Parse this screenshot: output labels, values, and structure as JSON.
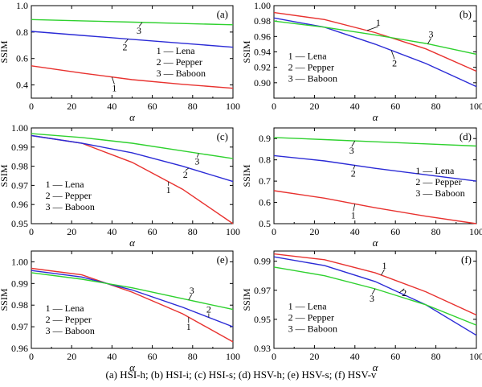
{
  "caption": "(a) HSI-h; (b) HSI-i; (c) HSI-s; (d) HSV-h; (e) HSV-s; (f) HSV-v",
  "colors": {
    "Lena": "#e8322f",
    "Pepper": "#2b2bd6",
    "Baboon": "#2fd12f"
  },
  "legend": [
    "1 — Lena",
    "2 — Pepper",
    "3 — Baboon"
  ],
  "chart_data": [
    {
      "type": "line",
      "panel": "(a)",
      "xlabel": "α",
      "ylabel": "SSIM",
      "xlim": [
        0,
        100
      ],
      "ylim": [
        0.3,
        1.0
      ],
      "xticks": [
        "0",
        "20",
        "40",
        "60",
        "80",
        "100"
      ],
      "yticks": [
        "0.4",
        "0.6",
        "0.8",
        "1.0"
      ],
      "x": [
        0,
        25,
        50,
        75,
        100
      ],
      "series": [
        {
          "name": "Lena",
          "number": "1",
          "values": [
            0.545,
            0.49,
            0.44,
            0.405,
            0.375
          ]
        },
        {
          "name": "Pepper",
          "number": "2",
          "values": [
            0.805,
            0.775,
            0.745,
            0.715,
            0.685
          ]
        },
        {
          "name": "Baboon",
          "number": "3",
          "values": [
            0.895,
            0.885,
            0.875,
            0.865,
            0.855
          ]
        }
      ]
    },
    {
      "type": "line",
      "panel": "(b)",
      "xlabel": "α",
      "ylabel": "SSIM",
      "xlim": [
        0,
        100
      ],
      "ylim": [
        0.88,
        1.0
      ],
      "xticks": [
        "0",
        "20",
        "40",
        "60",
        "80",
        "100"
      ],
      "yticks": [
        "0.90",
        "0.92",
        "0.94",
        "0.96",
        "0.98",
        "1.00"
      ],
      "x": [
        0,
        25,
        50,
        75,
        100
      ],
      "series": [
        {
          "name": "Lena",
          "number": "1",
          "values": [
            0.991,
            0.982,
            0.965,
            0.944,
            0.915
          ]
        },
        {
          "name": "Pepper",
          "number": "2",
          "values": [
            0.984,
            0.972,
            0.95,
            0.925,
            0.895
          ]
        },
        {
          "name": "Baboon",
          "number": "3",
          "values": [
            0.98,
            0.972,
            0.962,
            0.951,
            0.937
          ]
        }
      ]
    },
    {
      "type": "line",
      "panel": "(c)",
      "xlabel": "α",
      "ylabel": "SSIM",
      "xlim": [
        0,
        100
      ],
      "ylim": [
        0.95,
        1.0
      ],
      "xticks": [
        "0",
        "20",
        "40",
        "60",
        "80",
        "100"
      ],
      "yticks": [
        "0.95",
        "0.96",
        "0.97",
        "0.98",
        "0.99",
        "1.00"
      ],
      "x": [
        0,
        25,
        50,
        75,
        100
      ],
      "series": [
        {
          "name": "Lena",
          "number": "1",
          "values": [
            0.996,
            0.992,
            0.982,
            0.968,
            0.95
          ]
        },
        {
          "name": "Pepper",
          "number": "2",
          "values": [
            0.996,
            0.992,
            0.987,
            0.98,
            0.972
          ]
        },
        {
          "name": "Baboon",
          "number": "3",
          "values": [
            0.997,
            0.995,
            0.992,
            0.988,
            0.984
          ]
        }
      ]
    },
    {
      "type": "line",
      "panel": "(d)",
      "xlabel": "α",
      "ylabel": "SSIM",
      "xlim": [
        0,
        100
      ],
      "ylim": [
        0.5,
        0.95
      ],
      "xticks": [
        "0",
        "20",
        "40",
        "60",
        "80",
        "100"
      ],
      "yticks": [
        "0.5",
        "0.6",
        "0.7",
        "0.8",
        "0.9"
      ],
      "x": [
        0,
        25,
        50,
        75,
        100
      ],
      "series": [
        {
          "name": "Lena",
          "number": "1",
          "values": [
            0.655,
            0.62,
            0.575,
            0.535,
            0.5
          ]
        },
        {
          "name": "Pepper",
          "number": "2",
          "values": [
            0.82,
            0.795,
            0.76,
            0.73,
            0.7
          ]
        },
        {
          "name": "Baboon",
          "number": "3",
          "values": [
            0.905,
            0.895,
            0.885,
            0.875,
            0.865
          ]
        }
      ]
    },
    {
      "type": "line",
      "panel": "(e)",
      "xlabel": "α",
      "ylabel": "SSIM",
      "xlim": [
        0,
        100
      ],
      "ylim": [
        0.96,
        1.005
      ],
      "xticks": [
        "0",
        "20",
        "40",
        "60",
        "80",
        "100"
      ],
      "yticks": [
        "0.96",
        "0.97",
        "0.98",
        "0.99",
        "1.00"
      ],
      "x": [
        0,
        25,
        50,
        75,
        100
      ],
      "series": [
        {
          "name": "Lena",
          "number": "1",
          "values": [
            0.997,
            0.994,
            0.986,
            0.976,
            0.963
          ]
        },
        {
          "name": "Pepper",
          "number": "2",
          "values": [
            0.996,
            0.993,
            0.987,
            0.979,
            0.97
          ]
        },
        {
          "name": "Baboon",
          "number": "3",
          "values": [
            0.995,
            0.992,
            0.988,
            0.983,
            0.978
          ]
        }
      ]
    },
    {
      "type": "line",
      "panel": "(f)",
      "xlabel": "α",
      "ylabel": "SSIM",
      "xlim": [
        0,
        100
      ],
      "ylim": [
        0.93,
        0.997
      ],
      "xticks": [
        "0",
        "20",
        "40",
        "60",
        "80",
        "100"
      ],
      "yticks": [
        "0.93",
        "0.95",
        "0.97",
        "0.99"
      ],
      "x": [
        0,
        25,
        50,
        75,
        100
      ],
      "series": [
        {
          "name": "Lena",
          "number": "1",
          "values": [
            0.995,
            0.991,
            0.982,
            0.969,
            0.953
          ]
        },
        {
          "name": "Pepper",
          "number": "2",
          "values": [
            0.993,
            0.987,
            0.976,
            0.96,
            0.939
          ]
        },
        {
          "name": "Baboon",
          "number": "3",
          "values": [
            0.986,
            0.98,
            0.971,
            0.96,
            0.946
          ]
        }
      ]
    }
  ]
}
